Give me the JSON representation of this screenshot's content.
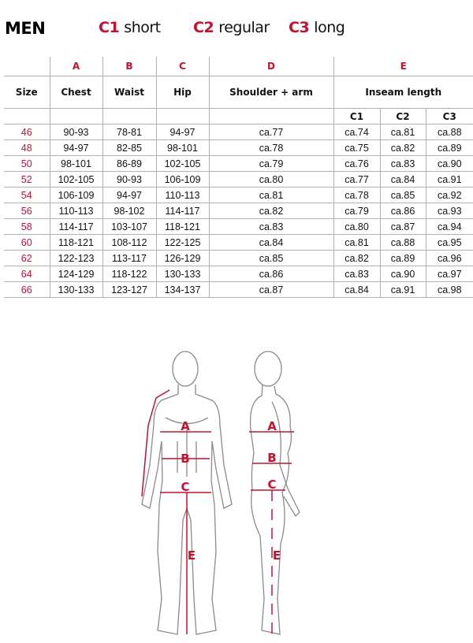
{
  "title": "MEN",
  "legend": [
    {
      "code": "C1",
      "label": "short"
    },
    {
      "code": "C2",
      "label": "regular"
    },
    {
      "code": "C3",
      "label": "long"
    }
  ],
  "letters": {
    "a": "A",
    "b": "B",
    "c": "C",
    "d": "D",
    "e": "E"
  },
  "headers": {
    "size": "Size",
    "chest": "Chest",
    "waist": "Waist",
    "hip": "Hip",
    "shoulder": "Shoulder + arm",
    "inseam": "Inseam length",
    "c1": "C1",
    "c2": "C2",
    "c3": "C3"
  },
  "rows": [
    [
      "46",
      "90-93",
      "78-81",
      "94-97",
      "ca.77",
      "ca.74",
      "ca.81",
      "ca.88"
    ],
    [
      "48",
      "94-97",
      "82-85",
      "98-101",
      "ca.78",
      "ca.75",
      "ca.82",
      "ca.89"
    ],
    [
      "50",
      "98-101",
      "86-89",
      "102-105",
      "ca.79",
      "ca.76",
      "ca.83",
      "ca.90"
    ],
    [
      "52",
      "102-105",
      "90-93",
      "106-109",
      "ca.80",
      "ca.77",
      "ca.84",
      "ca.91"
    ],
    [
      "54",
      "106-109",
      "94-97",
      "110-113",
      "ca.81",
      "ca.78",
      "ca.85",
      "ca.92"
    ],
    [
      "56",
      "110-113",
      "98-102",
      "114-117",
      "ca.82",
      "ca.79",
      "ca.86",
      "ca.93"
    ],
    [
      "58",
      "114-117",
      "103-107",
      "118-121",
      "ca.83",
      "ca.80",
      "ca.87",
      "ca.94"
    ],
    [
      "60",
      "118-121",
      "108-112",
      "122-125",
      "ca.84",
      "ca.81",
      "ca.88",
      "ca.95"
    ],
    [
      "62",
      "122-123",
      "113-117",
      "126-129",
      "ca.85",
      "ca.82",
      "ca.89",
      "ca.96"
    ],
    [
      "64",
      "124-129",
      "118-122",
      "130-133",
      "ca.86",
      "ca.83",
      "ca.90",
      "ca.97"
    ],
    [
      "66",
      "130-133",
      "123-127",
      "134-137",
      "ca.87",
      "ca.84",
      "ca.91",
      "ca.98"
    ]
  ],
  "colors": {
    "accent": "#c8102e",
    "grid": "#b0b0b0"
  }
}
